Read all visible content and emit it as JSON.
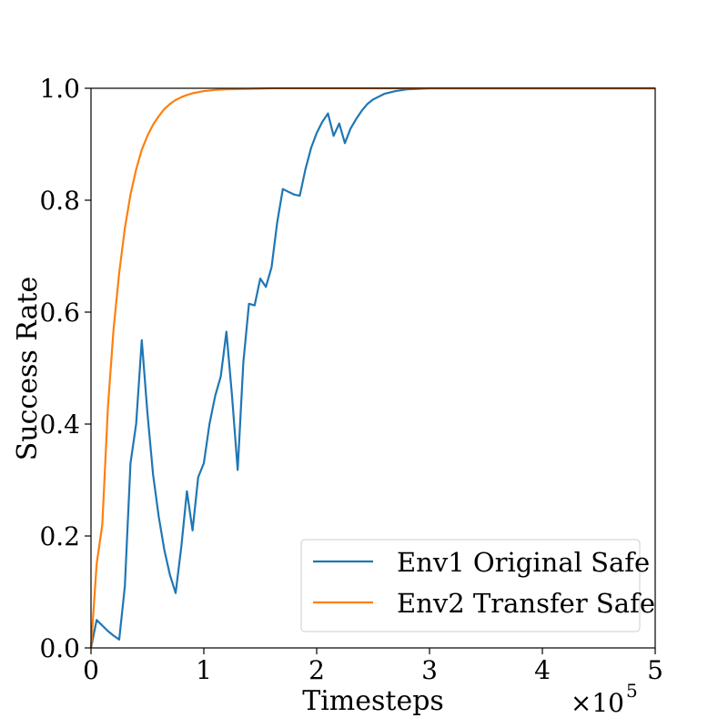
{
  "chart_data": {
    "type": "line",
    "title": "",
    "xlabel": "Timesteps",
    "ylabel": "Success Rate",
    "x_multiplier_label": "×10",
    "x_multiplier_exponent": "5",
    "xlim": [
      0,
      5
    ],
    "ylim": [
      0,
      1.0
    ],
    "x_ticks": [
      0,
      1,
      2,
      3,
      4,
      5
    ],
    "x_tick_labels": [
      "0",
      "1",
      "2",
      "3",
      "4",
      "5"
    ],
    "y_ticks": [
      0.0,
      0.2,
      0.4,
      0.6,
      0.8,
      1.0
    ],
    "y_tick_labels": [
      "0.0",
      "0.2",
      "0.4",
      "0.6",
      "0.8",
      "1.0"
    ],
    "grid": false,
    "legend_position": "lower-right",
    "series": [
      {
        "name": "Env1 Original Safe",
        "color": "#1f77b4",
        "x": [
          0,
          0.05,
          0.1,
          0.15,
          0.2,
          0.25,
          0.3,
          0.35,
          0.4,
          0.45,
          0.5,
          0.55,
          0.6,
          0.65,
          0.7,
          0.75,
          0.8,
          0.85,
          0.9,
          0.95,
          1.0,
          1.05,
          1.1,
          1.15,
          1.2,
          1.25,
          1.3,
          1.35,
          1.4,
          1.45,
          1.5,
          1.55,
          1.6,
          1.65,
          1.7,
          1.75,
          1.8,
          1.85,
          1.9,
          1.95,
          2.0,
          2.05,
          2.1,
          2.15,
          2.2,
          2.25,
          2.3,
          2.35,
          2.4,
          2.45,
          2.5,
          2.6,
          2.7,
          2.8,
          2.9,
          3.0,
          3.2,
          3.5,
          4.0,
          4.5,
          5.0
        ],
        "y": [
          0.0,
          0.05,
          0.04,
          0.03,
          0.022,
          0.015,
          0.11,
          0.33,
          0.4,
          0.55,
          0.42,
          0.31,
          0.235,
          0.175,
          0.13,
          0.098,
          0.18,
          0.28,
          0.21,
          0.305,
          0.33,
          0.4,
          0.45,
          0.485,
          0.565,
          0.45,
          0.318,
          0.51,
          0.615,
          0.612,
          0.66,
          0.645,
          0.68,
          0.76,
          0.82,
          0.815,
          0.81,
          0.808,
          0.855,
          0.893,
          0.92,
          0.94,
          0.955,
          0.915,
          0.937,
          0.902,
          0.928,
          0.945,
          0.96,
          0.972,
          0.98,
          0.99,
          0.995,
          0.998,
          0.999,
          1.0,
          1.0,
          1.0,
          1.0,
          1.0,
          1.0
        ]
      },
      {
        "name": "Env2 Transfer Safe",
        "color": "#ff7f0e",
        "x": [
          0,
          0.05,
          0.1,
          0.15,
          0.2,
          0.25,
          0.3,
          0.35,
          0.4,
          0.45,
          0.5,
          0.55,
          0.6,
          0.65,
          0.7,
          0.75,
          0.8,
          0.85,
          0.9,
          1.0,
          1.1,
          1.2,
          1.4,
          1.6,
          1.8,
          2.0,
          2.5,
          3.0,
          4.0,
          5.0
        ],
        "y": [
          0.0,
          0.15,
          0.22,
          0.43,
          0.57,
          0.67,
          0.75,
          0.81,
          0.855,
          0.89,
          0.915,
          0.935,
          0.95,
          0.963,
          0.972,
          0.979,
          0.984,
          0.988,
          0.991,
          0.995,
          0.997,
          0.998,
          0.999,
          1.0,
          1.0,
          1.0,
          1.0,
          1.0,
          1.0,
          1.0
        ]
      }
    ]
  }
}
